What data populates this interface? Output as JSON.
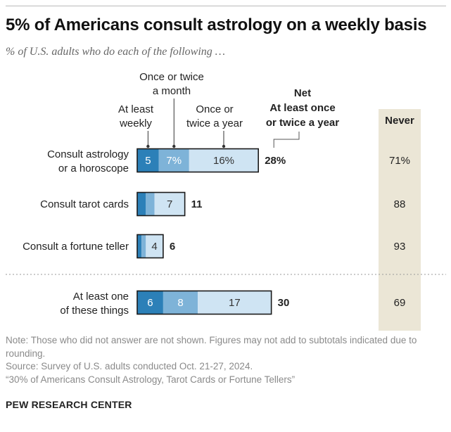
{
  "header": {
    "title": "5% of Americans consult astrology on a weekly basis",
    "subtitle": "% of U.S. adults who do each of the following …"
  },
  "chart_data": {
    "type": "bar",
    "stacked": true,
    "headers": {
      "weekly": [
        "At least",
        "weekly"
      ],
      "monthly": [
        "Once or twice",
        "a month"
      ],
      "yearly": [
        "Once or",
        "twice a year"
      ],
      "net": [
        "Net",
        "At least once",
        "or twice a year"
      ],
      "never": "Never"
    },
    "categories": [
      [
        "Consult astrology",
        "or a horoscope"
      ],
      [
        "Consult tarot cards"
      ],
      [
        "Consult a fortune teller"
      ],
      [
        "At least one",
        "of these things"
      ]
    ],
    "series": [
      {
        "name": "At least weekly",
        "values": [
          5,
          2,
          1,
          6
        ],
        "labels": [
          "5",
          "",
          "",
          "6"
        ],
        "color": "#2c80b8"
      },
      {
        "name": "Once or twice a month",
        "values": [
          7,
          2,
          1,
          8
        ],
        "labels": [
          "7%",
          "",
          "",
          "8"
        ],
        "color": "#7eb3d8"
      },
      {
        "name": "Once or twice a year",
        "values": [
          16,
          7,
          4,
          17
        ],
        "labels": [
          "16%",
          "7",
          "4",
          "17"
        ],
        "color": "#cfe4f3"
      }
    ],
    "net": {
      "values": [
        28,
        11,
        6,
        30
      ],
      "labels": [
        "28%",
        "11",
        "6",
        "30"
      ]
    },
    "never": {
      "values": [
        71,
        88,
        93,
        69
      ],
      "labels": [
        "71%",
        "88",
        "93",
        "69"
      ]
    },
    "colors": {
      "never_band": "#ebe6d6",
      "outline": "#1a1a1a"
    }
  },
  "footer": {
    "note": "Note: Those who did not answer are not shown. Figures may not add to subtotals indicated due to rounding.",
    "source": "Source: Survey of U.S. adults conducted Oct. 21-27, 2024.",
    "report": "“30% of Americans Consult Astrology, Tarot Cards or Fortune Tellers”",
    "organization": "PEW RESEARCH CENTER"
  }
}
